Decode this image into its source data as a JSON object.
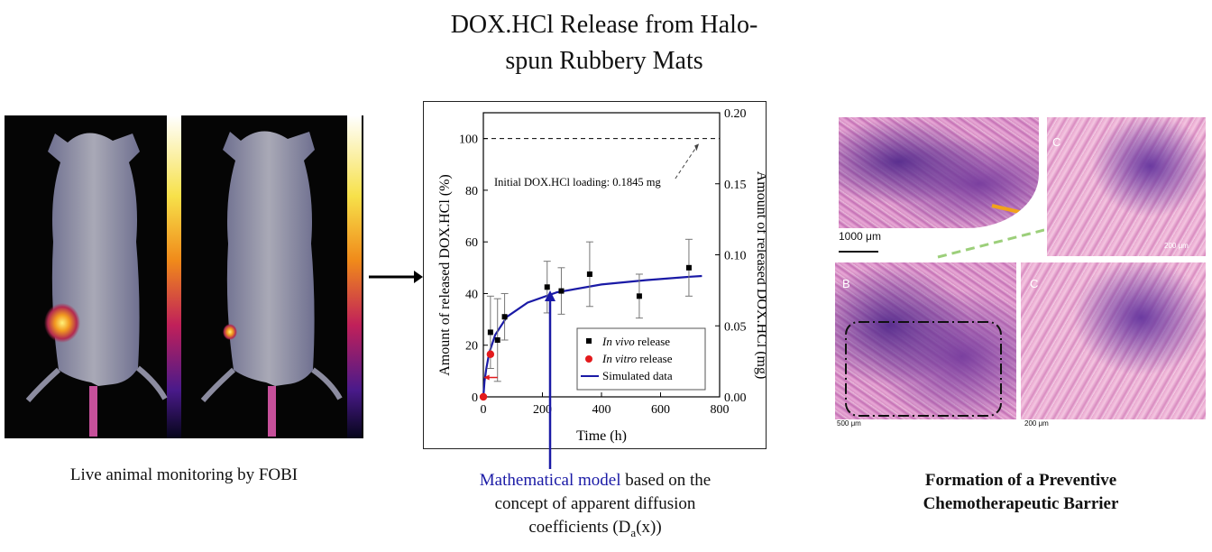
{
  "figure": {
    "title_line1": "DOX.HCl Release from Halo-",
    "title_line2": "spun Rubbery Mats",
    "left_caption": "Live animal monitoring by FOBI",
    "center_caption_highlight": "Mathematical model",
    "center_caption_rest_line1": " based on the",
    "center_caption_line2": "concept of apparent diffusion",
    "center_caption_line3_pre": "coefficients (D",
    "center_caption_line3_sub": "a",
    "center_caption_line3_post": "(x))",
    "right_caption_line1": "Formation of a Preventive",
    "right_caption_line2": "Chemotherapeutic Barrier",
    "panel_labels": [
      "C",
      "B",
      "C"
    ],
    "scale_bars": [
      "1000 μm",
      "200 μm",
      "500 μm",
      "200 μm"
    ]
  },
  "chart_data": {
    "type": "scatter",
    "xlabel": "Time (h)",
    "ylabel": "Amount of released DOX.HCl (%)",
    "ylabel_right": "Amount of released DOX.HCl (mg)",
    "xlim": [
      0,
      800
    ],
    "ylim": [
      0,
      110
    ],
    "ylim_right": [
      0,
      0.2
    ],
    "x_ticks": [
      0,
      200,
      400,
      600,
      800
    ],
    "y_ticks": [
      0,
      20,
      40,
      60,
      80,
      100
    ],
    "y_ticks_right": [
      "0.00",
      "0.05",
      "0.10",
      "0.15",
      "0.20"
    ],
    "annotation": "Initial DOX.HCl loading: 0.1845 mg",
    "reference_line_y": 100,
    "series": [
      {
        "name_italic": "In vivo",
        "name_rest": " release",
        "marker": "square",
        "color": "#000000",
        "x": [
          24,
          48,
          72,
          216,
          264,
          360,
          528,
          696
        ],
        "y": [
          25,
          22,
          31,
          42.5,
          41,
          47.5,
          39,
          50
        ],
        "err": [
          14,
          16,
          9,
          10,
          9,
          12.5,
          8.5,
          11
        ]
      },
      {
        "name_italic": "In vitro",
        "name_rest": " release",
        "marker": "circle",
        "color": "#e31a1c",
        "x": [
          0,
          24
        ],
        "y": [
          0,
          16.5
        ]
      },
      {
        "name": "Simulated data",
        "line": true,
        "color": "#1a1aa6",
        "x": [
          0,
          4,
          10,
          20,
          40,
          80,
          150,
          250,
          400,
          550,
          700,
          740
        ],
        "y": [
          0,
          6,
          11,
          17,
          24,
          31,
          36.5,
          40.5,
          43.5,
          45.2,
          46.5,
          46.8
        ]
      }
    ]
  }
}
